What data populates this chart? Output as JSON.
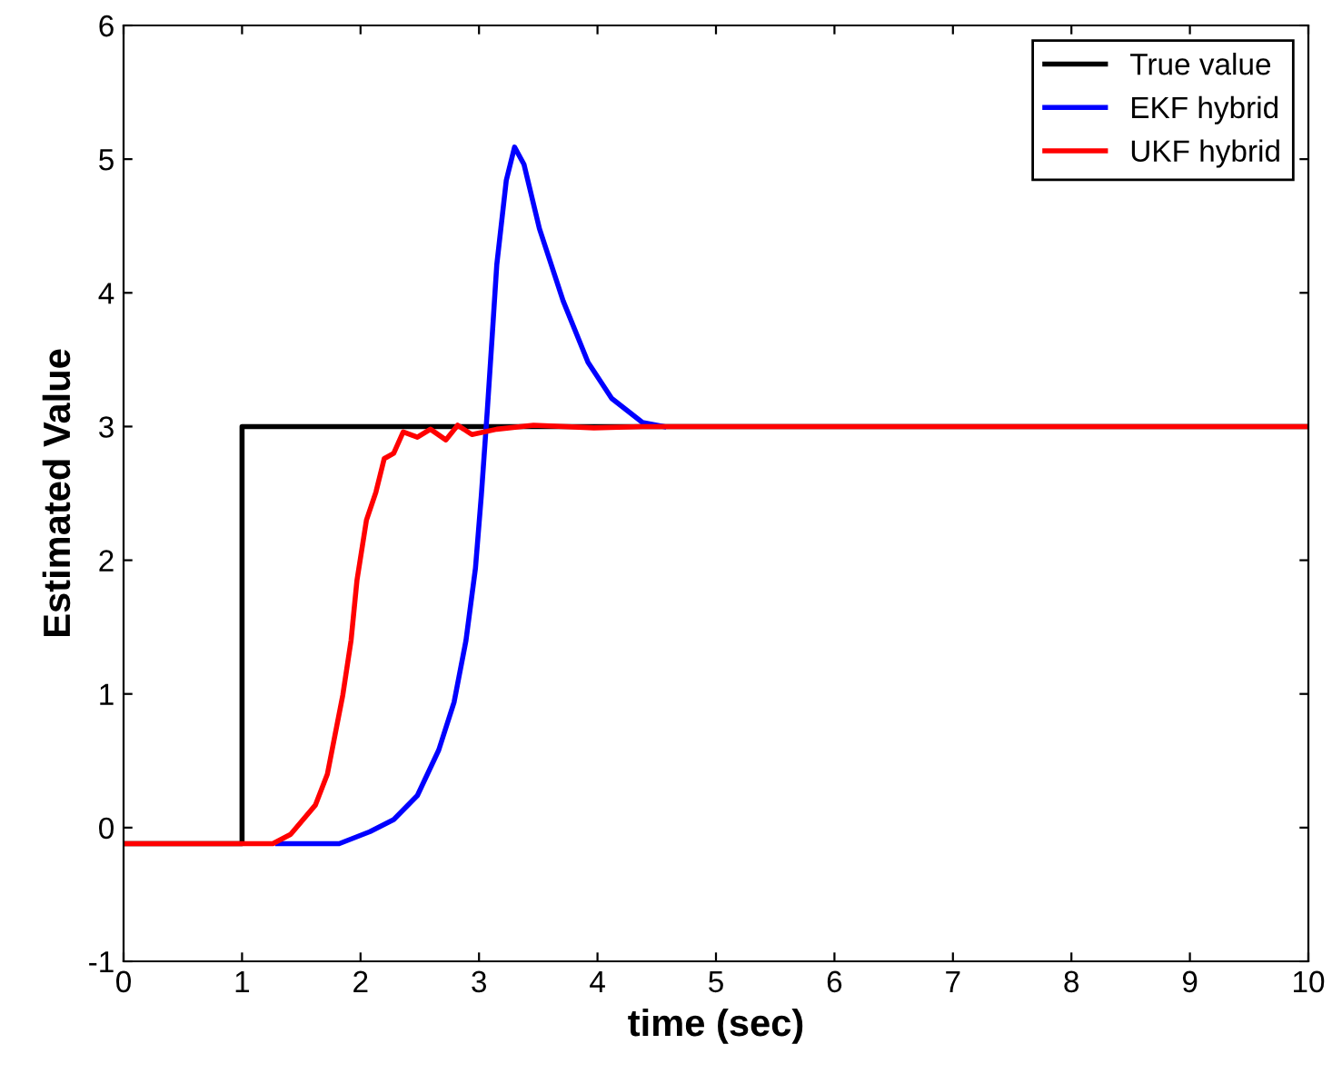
{
  "chart_data": {
    "type": "line",
    "xlabel": "time (sec)",
    "ylabel": "Estimated Value",
    "xlim": [
      0,
      10
    ],
    "ylim": [
      -1,
      6
    ],
    "xticks": [
      0,
      1,
      2,
      3,
      4,
      5,
      6,
      7,
      8,
      9,
      10
    ],
    "yticks": [
      -1,
      0,
      1,
      2,
      3,
      4,
      5,
      6
    ],
    "grid": false,
    "legend": "top right",
    "line_style": "solid",
    "marker": "none",
    "series": [
      {
        "name": "True value",
        "color": "#000000",
        "x": [
          0,
          1,
          1,
          10
        ],
        "values": [
          -0.12,
          -0.12,
          3,
          3
        ]
      },
      {
        "name": "EKF hybrid",
        "color": "#0000ff",
        "x": [
          1.3,
          1.82,
          2.08,
          2.28,
          2.48,
          2.66,
          2.79,
          2.89,
          2.97,
          3.02,
          3.07,
          3.11,
          3.15,
          3.23,
          3.3,
          3.38,
          3.51,
          3.71,
          3.92,
          4.12,
          4.38,
          4.56
        ],
        "values": [
          -0.12,
          -0.12,
          -0.03,
          0.06,
          0.24,
          0.58,
          0.94,
          1.4,
          1.94,
          2.49,
          3.12,
          3.66,
          4.21,
          4.84,
          5.09,
          4.96,
          4.48,
          3.94,
          3.48,
          3.21,
          3.03,
          3.0
        ]
      },
      {
        "name": "UKF hybrid",
        "color": "#ff0000",
        "x": [
          0,
          1.26,
          1.41,
          1.62,
          1.72,
          1.85,
          1.92,
          1.97,
          2.05,
          2.13,
          2.2,
          2.28,
          2.36,
          2.48,
          2.59,
          2.72,
          2.82,
          2.94,
          3.15,
          3.46,
          3.97,
          4.38,
          10
        ],
        "values": [
          -0.12,
          -0.12,
          -0.05,
          0.17,
          0.4,
          0.99,
          1.4,
          1.85,
          2.3,
          2.51,
          2.76,
          2.8,
          2.96,
          2.92,
          2.98,
          2.9,
          3.01,
          2.94,
          2.98,
          3.01,
          2.99,
          3.0,
          3.0
        ]
      }
    ]
  }
}
